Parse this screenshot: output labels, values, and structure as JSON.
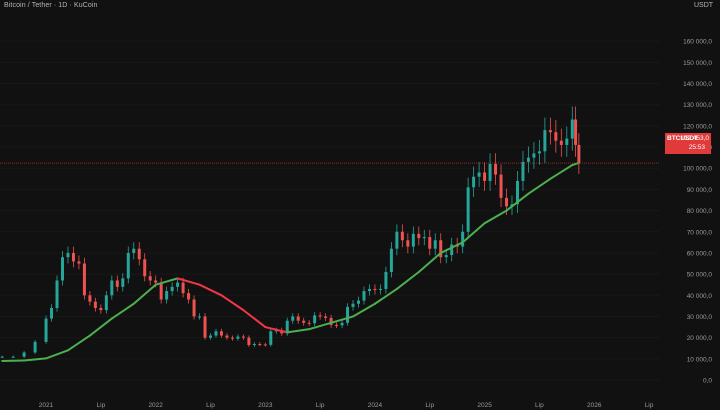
{
  "header": {
    "title": "Bitcoin / Tether · 1D · KuCoin",
    "unit": "USDT"
  },
  "badge": {
    "symbol": "BTCUSDT",
    "price": "102 453,0",
    "countdown": "25:53"
  },
  "colors": {
    "background": "#111111",
    "price_line": "#e03a3a",
    "ma_rising": "#4caf50",
    "ma_falling": "#f23645",
    "candle_up": "#26a69a",
    "candle_down": "#ef5350"
  },
  "chart_data": {
    "type": "line",
    "title": "Bitcoin / Tether · 1D · KuCoin",
    "ylabel": "USDT",
    "ylim": [
      0,
      170000
    ],
    "y_ticks": [
      {
        "value": 0,
        "label": "0,0"
      },
      {
        "value": 10000,
        "label": "10 000,0"
      },
      {
        "value": 20000,
        "label": "20 000,0"
      },
      {
        "value": 30000,
        "label": "30 000,0"
      },
      {
        "value": 40000,
        "label": "40 000,0"
      },
      {
        "value": 50000,
        "label": "50 000,0"
      },
      {
        "value": 60000,
        "label": "60 000,0"
      },
      {
        "value": 70000,
        "label": "70 000,0"
      },
      {
        "value": 80000,
        "label": "80 000,0"
      },
      {
        "value": 90000,
        "label": "90 000,0"
      },
      {
        "value": 100000,
        "label": "100 000,0"
      },
      {
        "value": 110000,
        "label": "110 000,0"
      },
      {
        "value": 120000,
        "label": "120 000,0"
      },
      {
        "value": 130000,
        "label": "130 000,0"
      },
      {
        "value": 140000,
        "label": "140 000,0"
      },
      {
        "value": 150000,
        "label": "150 000,0"
      },
      {
        "value": 160000,
        "label": "160 000,0"
      }
    ],
    "xlim": [
      2020.58,
      2026.6
    ],
    "x_ticks": [
      {
        "value": 2021.0,
        "label": "2021"
      },
      {
        "value": 2021.5,
        "label": "Lip"
      },
      {
        "value": 2022.0,
        "label": "2022"
      },
      {
        "value": 2022.5,
        "label": "Lip"
      },
      {
        "value": 2023.0,
        "label": "2023"
      },
      {
        "value": 2023.5,
        "label": "Lip"
      },
      {
        "value": 2024.0,
        "label": "2024"
      },
      {
        "value": 2024.5,
        "label": "Lip"
      },
      {
        "value": 2025.0,
        "label": "2025"
      },
      {
        "value": 2025.5,
        "label": "Lip"
      },
      {
        "value": 2026.0,
        "label": "2026"
      },
      {
        "value": 2026.5,
        "label": "Lip"
      }
    ],
    "current_price": 102453,
    "series": [
      {
        "type": "candlestick-close",
        "x": [
          2020.6,
          2020.7,
          2020.8,
          2020.9,
          2021.0,
          2021.05,
          2021.1,
          2021.15,
          2021.2,
          2021.25,
          2021.3,
          2021.35,
          2021.4,
          2021.45,
          2021.5,
          2021.55,
          2021.6,
          2021.65,
          2021.7,
          2021.75,
          2021.8,
          2021.85,
          2021.9,
          2021.95,
          2022.0,
          2022.05,
          2022.1,
          2022.15,
          2022.2,
          2022.25,
          2022.3,
          2022.35,
          2022.4,
          2022.45,
          2022.5,
          2022.55,
          2022.6,
          2022.65,
          2022.7,
          2022.75,
          2022.8,
          2022.85,
          2022.9,
          2022.95,
          2023.0,
          2023.05,
          2023.1,
          2023.15,
          2023.2,
          2023.25,
          2023.3,
          2023.35,
          2023.4,
          2023.45,
          2023.5,
          2023.55,
          2023.6,
          2023.65,
          2023.7,
          2023.75,
          2023.8,
          2023.85,
          2023.9,
          2023.95,
          2024.0,
          2024.05,
          2024.1,
          2024.15,
          2024.2,
          2024.25,
          2024.3,
          2024.35,
          2024.4,
          2024.45,
          2024.5,
          2024.55,
          2024.6,
          2024.65,
          2024.7,
          2024.75,
          2024.8,
          2024.85,
          2024.9,
          2024.95,
          2025.0,
          2025.05,
          2025.1,
          2025.15,
          2025.2,
          2025.25,
          2025.3,
          2025.35,
          2025.4,
          2025.45,
          2025.5,
          2025.55,
          2025.6,
          2025.65,
          2025.7,
          2025.75,
          2025.8,
          2025.83,
          2025.86
        ],
        "values": [
          11000,
          11000,
          13000,
          18000,
          29000,
          34000,
          47000,
          58000,
          60000,
          56000,
          55000,
          40000,
          37000,
          34000,
          33000,
          40000,
          47000,
          44000,
          48000,
          60000,
          62000,
          57000,
          49000,
          47000,
          46000,
          38000,
          42000,
          44000,
          46000,
          41000,
          38000,
          30000,
          30000,
          20000,
          21000,
          23000,
          21000,
          20000,
          19500,
          20500,
          20000,
          16500,
          17000,
          16800,
          16600,
          23000,
          23500,
          22000,
          28000,
          30000,
          28000,
          27000,
          26800,
          30500,
          30000,
          29300,
          26000,
          25800,
          27000,
          34500,
          36000,
          37500,
          42000,
          43000,
          42500,
          43000,
          51000,
          62000,
          70000,
          66000,
          63000,
          69000,
          67000,
          67500,
          62000,
          66000,
          58000,
          59000,
          64000,
          63000,
          70000,
          91000,
          96000,
          98000,
          94000,
          102000,
          97000,
          86000,
          82000,
          83000,
          94000,
          103000,
          105000,
          107000,
          108000,
          118000,
          117000,
          113000,
          111000,
          114000,
          123000,
          111000,
          102453
        ]
      },
      {
        "name": "",
        "type": "moving-average",
        "x": [
          2020.6,
          2020.8,
          2021.0,
          2021.2,
          2021.4,
          2021.6,
          2021.8,
          2022.0,
          2022.2,
          2022.4,
          2022.6,
          2022.8,
          2023.0,
          2023.2,
          2023.4,
          2023.6,
          2023.8,
          2024.0,
          2024.2,
          2024.4,
          2024.6,
          2024.8,
          2025.0,
          2025.2,
          2025.4,
          2025.6,
          2025.8,
          2025.86
        ],
        "values": [
          9000,
          9200,
          10200,
          14000,
          21000,
          29000,
          36000,
          45000,
          48000,
          45000,
          40000,
          33000,
          25000,
          22500,
          24000,
          27000,
          30000,
          36000,
          43000,
          51000,
          60000,
          65000,
          74000,
          80000,
          88000,
          95000,
          101500,
          102500
        ],
        "falling_range": [
          2022.0,
          2023.15
        ]
      }
    ]
  }
}
